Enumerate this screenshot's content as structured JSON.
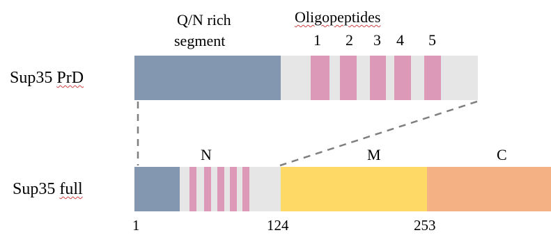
{
  "top": {
    "row_label_prefix": "Sup35 ",
    "row_label_squiggle": "PrD",
    "qn_label_line1": "Q/N rich",
    "qn_label_line2": "segment",
    "oligo_label": "Oligopeptides",
    "oligo_numbers": [
      "1",
      "2",
      "3",
      "4",
      "5"
    ]
  },
  "bottom": {
    "row_label_prefix": "Sup35 ",
    "row_label_squiggle": "full",
    "domain_labels": {
      "n": "N",
      "m": "M",
      "c": "C"
    },
    "position_labels": [
      "1",
      "124",
      "253"
    ]
  },
  "colors": {
    "qn_segment": "#8497b0",
    "spacer": "#e7e6e6",
    "oligopeptide": "#dd9ab8",
    "m_domain": "#ffd966",
    "c_domain": "#f4b183",
    "dash": "#7f7f7f"
  }
}
